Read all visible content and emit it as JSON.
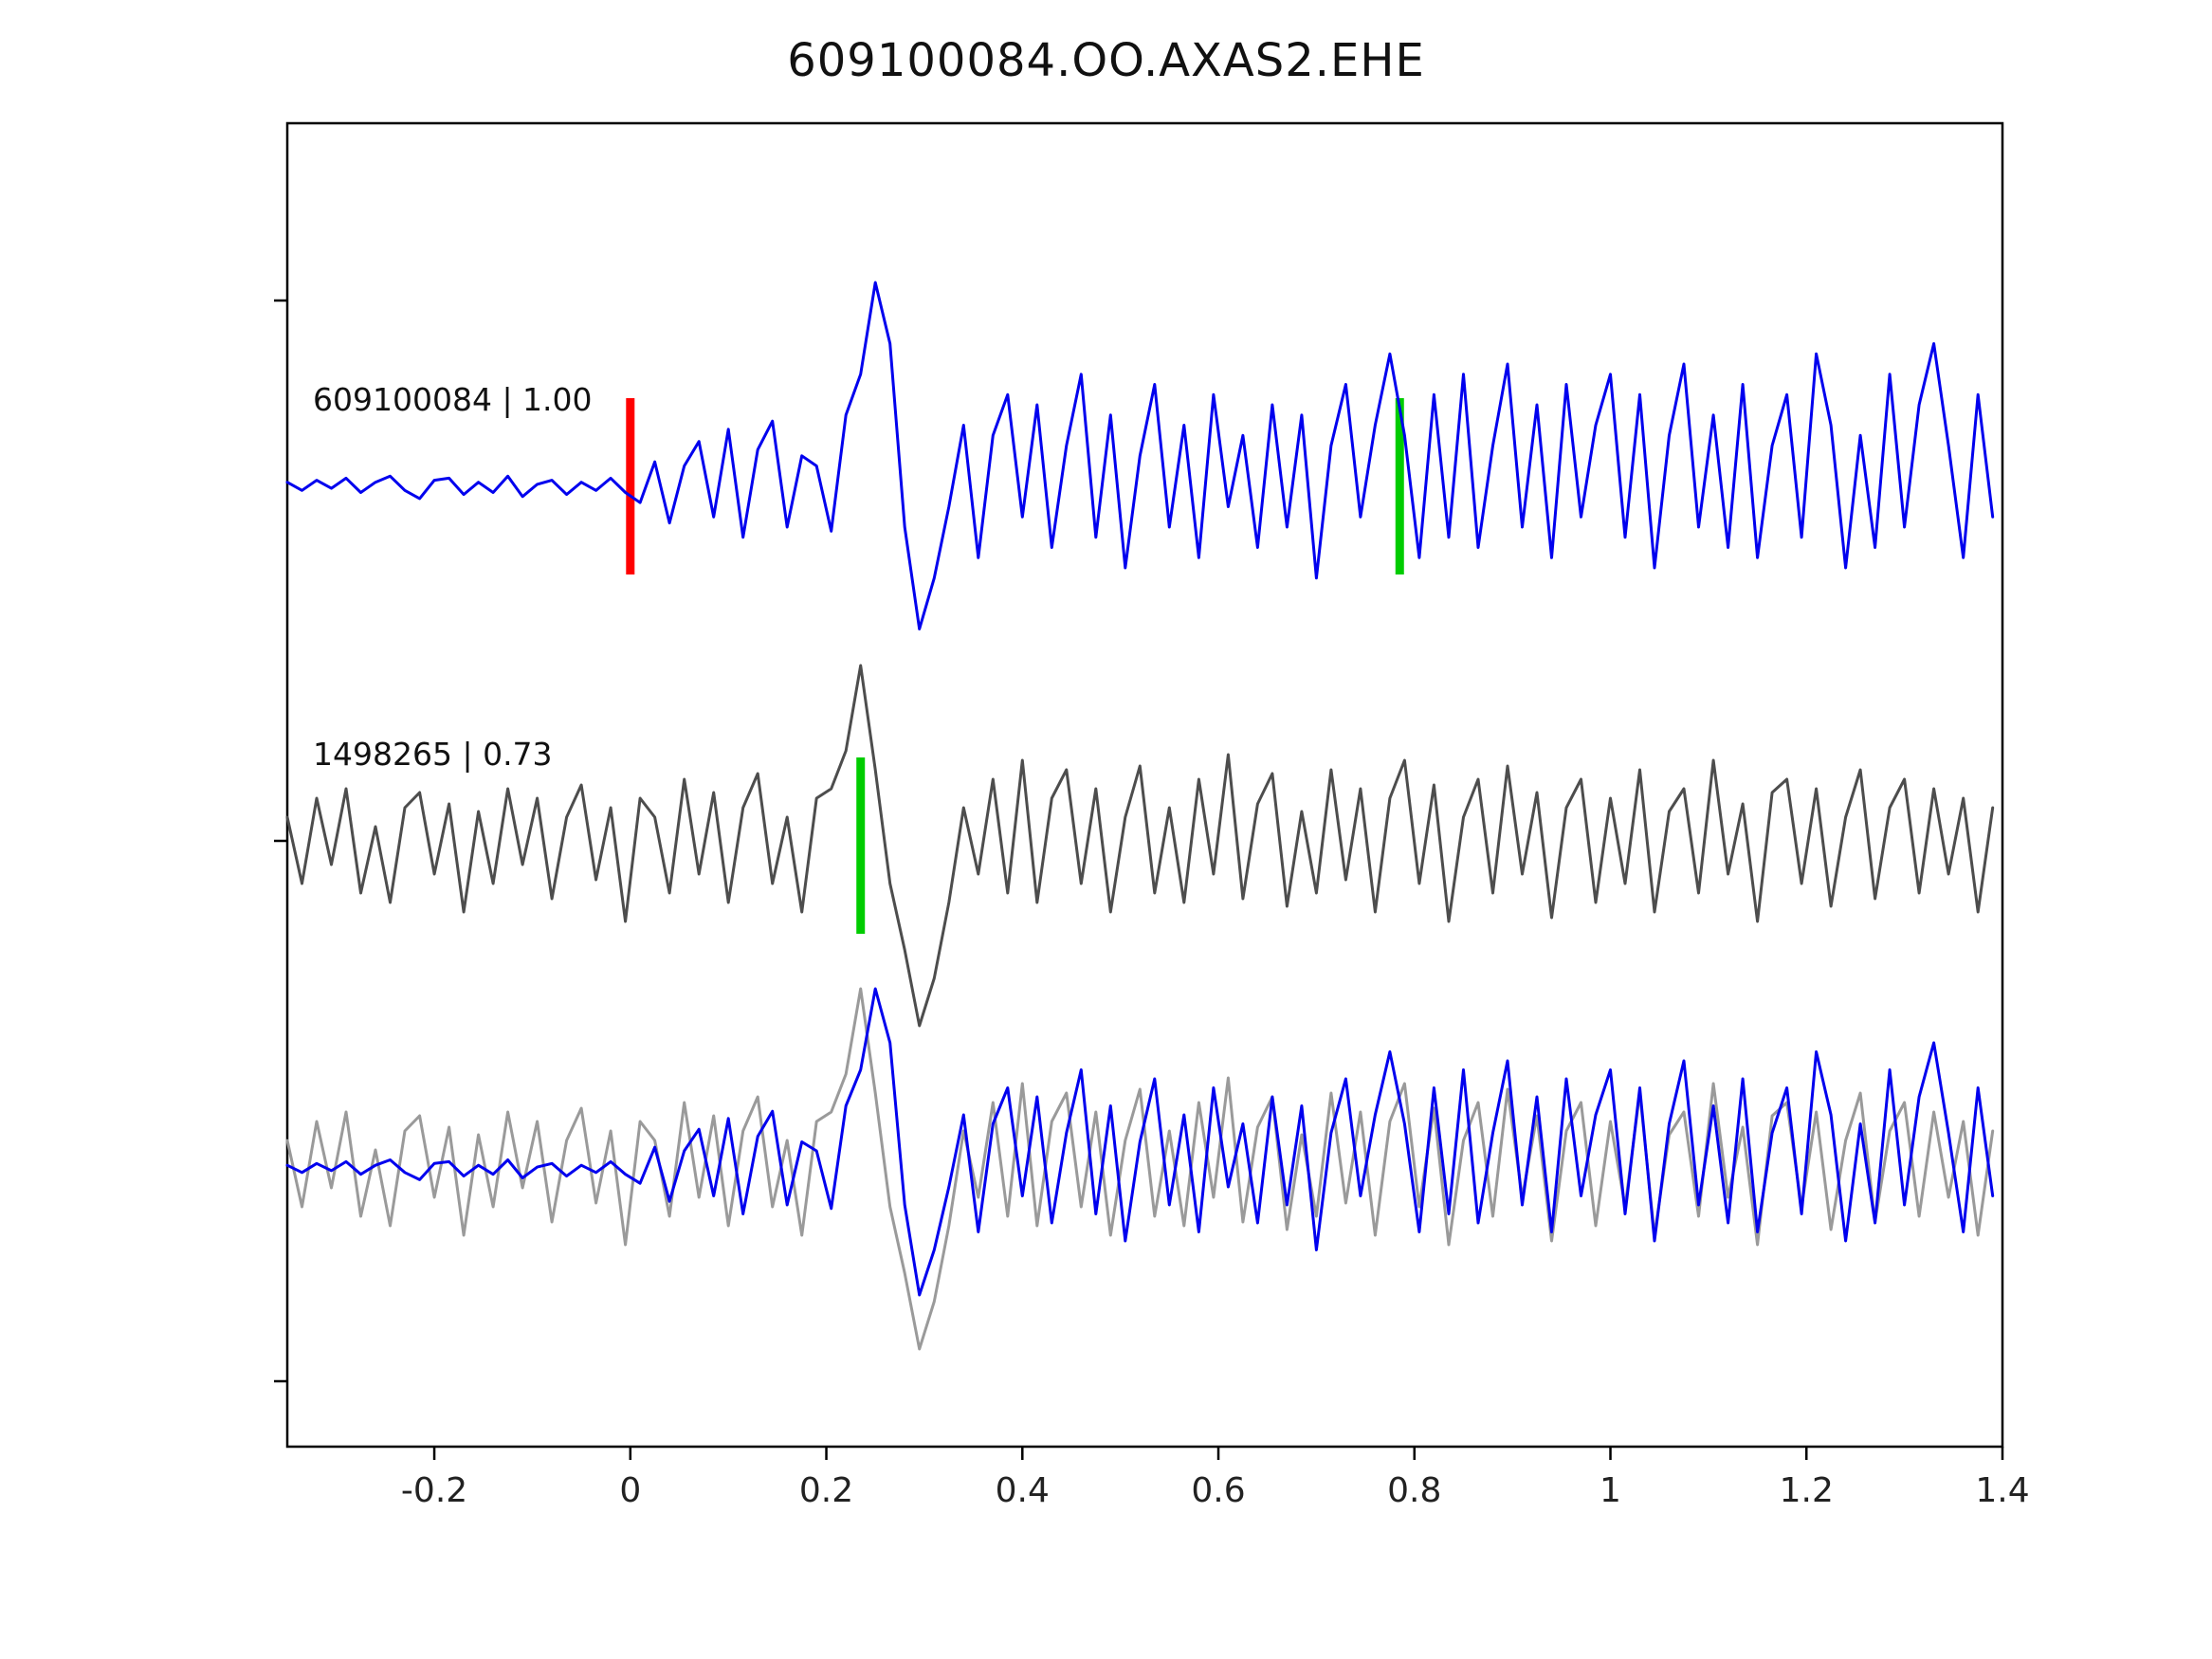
{
  "chart_data": {
    "type": "line",
    "title": "609100084.OO.AXAS2.EHE",
    "xlabel": "",
    "ylabel": "",
    "grid": false,
    "legend_position": "none",
    "x_range": [
      -0.35,
      1.4
    ],
    "x_ticks": [
      -0.2,
      0,
      0.2,
      0.4,
      0.6,
      0.8,
      1,
      1.2,
      1.4
    ],
    "x_tick_labels": [
      "-0.2",
      "0",
      "0.2",
      "0.4",
      "0.6",
      "0.8",
      "1",
      "1.2",
      "1.4"
    ],
    "x_start": -0.35,
    "sample_dx": 0.015,
    "traces": [
      {
        "id": "609100084",
        "label": "609100084 | 1.00",
        "correlation": "1.00",
        "color": "#0000ee",
        "row": 0,
        "markers": [
          {
            "x": 0.0,
            "color": "#ff0000",
            "name": "pick-red"
          },
          {
            "x": 0.785,
            "color": "#00cc00",
            "name": "pick-green"
          }
        ],
        "values": [
          0.02,
          -0.02,
          0.03,
          -0.01,
          0.04,
          -0.03,
          0.02,
          0.05,
          -0.02,
          -0.06,
          0.03,
          0.04,
          -0.04,
          0.02,
          -0.03,
          0.05,
          -0.05,
          0.01,
          0.03,
          -0.04,
          0.02,
          -0.02,
          0.04,
          -0.03,
          -0.08,
          0.12,
          -0.18,
          0.1,
          0.22,
          -0.15,
          0.28,
          -0.25,
          0.18,
          0.32,
          -0.2,
          0.15,
          0.1,
          -0.22,
          0.35,
          0.55,
          1.0,
          0.7,
          -0.2,
          -0.7,
          -0.45,
          -0.1,
          0.3,
          -0.35,
          0.25,
          0.45,
          -0.15,
          0.4,
          -0.3,
          0.2,
          0.55,
          -0.25,
          0.35,
          -0.4,
          0.15,
          0.5,
          -0.2,
          0.3,
          -0.35,
          0.45,
          -0.1,
          0.25,
          -0.3,
          0.4,
          -0.2,
          0.35,
          -0.45,
          0.2,
          0.5,
          -0.15,
          0.3,
          0.65,
          0.25,
          -0.35,
          0.45,
          -0.25,
          0.55,
          -0.3,
          0.2,
          0.6,
          -0.2,
          0.4,
          -0.35,
          0.5,
          -0.15,
          0.3,
          0.55,
          -0.25,
          0.45,
          -0.4,
          0.25,
          0.6,
          -0.2,
          0.35,
          -0.3,
          0.5,
          -0.35,
          0.2,
          0.45,
          -0.25,
          0.65,
          0.3,
          -0.4,
          0.25,
          -0.3,
          0.55,
          -0.2,
          0.4,
          0.7,
          0.2,
          -0.35,
          0.45,
          -0.15
        ]
      },
      {
        "id": "1498265",
        "label": "1498265 | 0.73",
        "correlation": "0.73",
        "color": "#4d4d4d",
        "row": 1,
        "markers": [
          {
            "x": 0.235,
            "color": "#00cc00",
            "name": "pick-green"
          }
        ],
        "values": [
          0.15,
          -0.2,
          0.25,
          -0.1,
          0.3,
          -0.25,
          0.1,
          -0.3,
          0.2,
          0.28,
          -0.15,
          0.22,
          -0.35,
          0.18,
          -0.2,
          0.3,
          -0.1,
          0.25,
          -0.28,
          0.15,
          0.32,
          -0.18,
          0.2,
          -0.4,
          0.25,
          0.15,
          -0.25,
          0.35,
          -0.15,
          0.28,
          -0.3,
          0.2,
          0.38,
          -0.2,
          0.15,
          -0.35,
          0.25,
          0.3,
          0.5,
          0.95,
          0.4,
          -0.2,
          -0.55,
          -0.95,
          -0.7,
          -0.3,
          0.2,
          -0.15,
          0.35,
          -0.25,
          0.45,
          -0.3,
          0.25,
          0.4,
          -0.2,
          0.3,
          -0.35,
          0.15,
          0.42,
          -0.25,
          0.2,
          -0.3,
          0.35,
          -0.15,
          0.48,
          -0.28,
          0.22,
          0.38,
          -0.32,
          0.18,
          -0.25,
          0.4,
          -0.18,
          0.3,
          -0.35,
          0.25,
          0.45,
          -0.2,
          0.32,
          -0.4,
          0.15,
          0.35,
          -0.25,
          0.42,
          -0.15,
          0.28,
          -0.38,
          0.2,
          0.35,
          -0.3,
          0.25,
          -0.2,
          0.4,
          -0.35,
          0.18,
          0.3,
          -0.25,
          0.45,
          -0.15,
          0.22,
          -0.4,
          0.28,
          0.35,
          -0.2,
          0.3,
          -0.32,
          0.15,
          0.4,
          -0.28,
          0.2,
          0.35,
          -0.25,
          0.3,
          -0.15,
          0.25,
          -0.35,
          0.2
        ]
      }
    ],
    "overlay": {
      "row": 2,
      "traces": [
        {
          "source": 1,
          "color": "#9a9a9a"
        },
        {
          "source": 0,
          "color": "#0000ee"
        }
      ]
    }
  }
}
